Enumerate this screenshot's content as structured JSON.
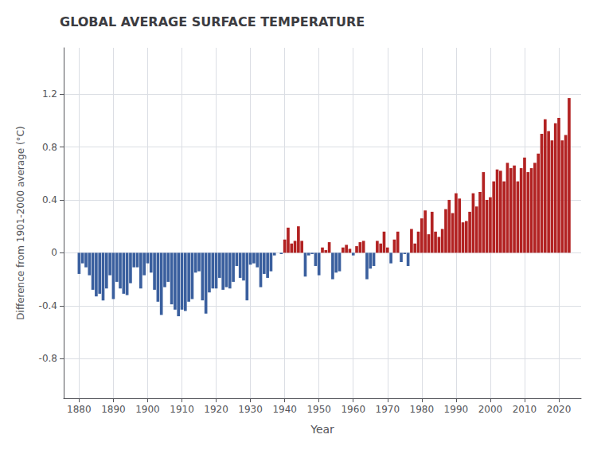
{
  "chart_data": {
    "type": "bar",
    "title": "GLOBAL AVERAGE SURFACE TEMPERATURE",
    "xlabel": "Year",
    "ylabel": "Difference from 1901-2000 average (°C)",
    "x": [
      1880,
      1881,
      1882,
      1883,
      1884,
      1885,
      1886,
      1887,
      1888,
      1889,
      1890,
      1891,
      1892,
      1893,
      1894,
      1895,
      1896,
      1897,
      1898,
      1899,
      1900,
      1901,
      1902,
      1903,
      1904,
      1905,
      1906,
      1907,
      1908,
      1909,
      1910,
      1911,
      1912,
      1913,
      1914,
      1915,
      1916,
      1917,
      1918,
      1919,
      1920,
      1921,
      1922,
      1923,
      1924,
      1925,
      1926,
      1927,
      1928,
      1929,
      1930,
      1931,
      1932,
      1933,
      1934,
      1935,
      1936,
      1937,
      1938,
      1939,
      1940,
      1941,
      1942,
      1943,
      1944,
      1945,
      1946,
      1947,
      1948,
      1949,
      1950,
      1951,
      1952,
      1953,
      1954,
      1955,
      1956,
      1957,
      1958,
      1959,
      1960,
      1961,
      1962,
      1963,
      1964,
      1965,
      1966,
      1967,
      1968,
      1969,
      1970,
      1971,
      1972,
      1973,
      1974,
      1975,
      1976,
      1977,
      1978,
      1979,
      1980,
      1981,
      1982,
      1983,
      1984,
      1985,
      1986,
      1987,
      1988,
      1989,
      1990,
      1991,
      1992,
      1993,
      1994,
      1995,
      1996,
      1997,
      1998,
      1999,
      2000,
      2001,
      2002,
      2003,
      2004,
      2005,
      2006,
      2007,
      2008,
      2009,
      2010,
      2011,
      2012,
      2013,
      2014,
      2015,
      2016,
      2017,
      2018,
      2019,
      2020,
      2021,
      2022,
      2023
    ],
    "values": [
      -0.16,
      -0.08,
      -0.11,
      -0.17,
      -0.28,
      -0.33,
      -0.31,
      -0.36,
      -0.27,
      -0.17,
      -0.35,
      -0.22,
      -0.27,
      -0.31,
      -0.32,
      -0.23,
      -0.11,
      -0.11,
      -0.27,
      -0.17,
      -0.08,
      -0.15,
      -0.28,
      -0.37,
      -0.47,
      -0.26,
      -0.22,
      -0.39,
      -0.43,
      -0.48,
      -0.43,
      -0.44,
      -0.37,
      -0.35,
      -0.15,
      -0.14,
      -0.36,
      -0.46,
      -0.3,
      -0.27,
      -0.27,
      -0.19,
      -0.28,
      -0.26,
      -0.27,
      -0.22,
      -0.1,
      -0.19,
      -0.21,
      -0.36,
      -0.09,
      -0.08,
      -0.11,
      -0.26,
      -0.16,
      -0.19,
      -0.14,
      -0.02,
      -0.0,
      -0.01,
      0.1,
      0.19,
      0.07,
      0.09,
      0.2,
      0.09,
      -0.18,
      -0.02,
      -0.01,
      -0.1,
      -0.17,
      0.04,
      0.02,
      0.08,
      -0.2,
      -0.15,
      -0.14,
      0.04,
      0.06,
      0.03,
      -0.02,
      0.05,
      0.08,
      0.09,
      -0.2,
      -0.12,
      -0.1,
      0.09,
      0.07,
      0.16,
      0.04,
      -0.08,
      0.1,
      0.16,
      -0.07,
      -0.01,
      -0.1,
      0.18,
      0.07,
      0.16,
      0.26,
      0.32,
      0.14,
      0.31,
      0.16,
      0.12,
      0.18,
      0.33,
      0.4,
      0.3,
      0.45,
      0.41,
      0.23,
      0.24,
      0.31,
      0.45,
      0.35,
      0.46,
      0.61,
      0.4,
      0.42,
      0.54,
      0.63,
      0.62,
      0.54,
      0.68,
      0.64,
      0.66,
      0.54,
      0.64,
      0.72,
      0.61,
      0.64,
      0.68,
      0.75,
      0.9,
      1.01,
      0.92,
      0.85,
      0.98,
      1.02,
      0.85,
      0.89,
      1.17
    ],
    "colors": [
      "#3a5f9e",
      "#3a5f9e",
      "#3a5f9e",
      "#3a5f9e",
      "#3a5f9e",
      "#3a5f9e",
      "#3a5f9e",
      "#3a5f9e",
      "#3a5f9e",
      "#3a5f9e",
      "#3a5f9e",
      "#3a5f9e",
      "#3a5f9e",
      "#3a5f9e",
      "#3a5f9e",
      "#3a5f9e",
      "#3a5f9e",
      "#3a5f9e",
      "#3a5f9e",
      "#3a5f9e",
      "#3a5f9e",
      "#3a5f9e",
      "#3a5f9e",
      "#3a5f9e",
      "#3a5f9e",
      "#3a5f9e",
      "#3a5f9e",
      "#3a5f9e",
      "#3a5f9e",
      "#3a5f9e",
      "#3a5f9e",
      "#3a5f9e",
      "#3a5f9e",
      "#3a5f9e",
      "#3a5f9e",
      "#3a5f9e",
      "#3a5f9e",
      "#3a5f9e",
      "#3a5f9e",
      "#3a5f9e",
      "#3a5f9e",
      "#3a5f9e",
      "#3a5f9e",
      "#3a5f9e",
      "#3a5f9e",
      "#3a5f9e",
      "#3a5f9e",
      "#3a5f9e",
      "#3a5f9e",
      "#3a5f9e",
      "#3a5f9e",
      "#3a5f9e",
      "#3a5f9e",
      "#3a5f9e",
      "#3a5f9e",
      "#3a5f9e",
      "#3a5f9e",
      "#3a5f9e",
      "#b22222",
      "#3a5f9e",
      "#b22222",
      "#b22222",
      "#b22222",
      "#b22222",
      "#b22222",
      "#b22222",
      "#3a5f9e",
      "#3a5f9e",
      "#3a5f9e",
      "#3a5f9e",
      "#3a5f9e",
      "#b22222",
      "#b22222",
      "#b22222",
      "#3a5f9e",
      "#3a5f9e",
      "#3a5f9e",
      "#b22222",
      "#b22222",
      "#b22222",
      "#3a5f9e",
      "#b22222",
      "#b22222",
      "#b22222",
      "#3a5f9e",
      "#3a5f9e",
      "#3a5f9e",
      "#b22222",
      "#b22222",
      "#b22222",
      "#b22222",
      "#3a5f9e",
      "#b22222",
      "#b22222",
      "#3a5f9e",
      "#3a5f9e",
      "#3a5f9e",
      "#b22222",
      "#b22222",
      "#b22222",
      "#b22222",
      "#b22222",
      "#b22222",
      "#b22222",
      "#b22222",
      "#b22222",
      "#b22222",
      "#b22222",
      "#b22222",
      "#b22222",
      "#b22222",
      "#b22222",
      "#b22222",
      "#b22222",
      "#b22222",
      "#b22222",
      "#b22222",
      "#b22222",
      "#b22222",
      "#b22222",
      "#b22222",
      "#b22222",
      "#b22222",
      "#b22222",
      "#b22222",
      "#b22222",
      "#b22222",
      "#b22222",
      "#b22222",
      "#b22222",
      "#b22222",
      "#b22222",
      "#b22222",
      "#b22222",
      "#b22222",
      "#b22222",
      "#b22222",
      "#b22222",
      "#b22222",
      "#b22222",
      "#b22222",
      "#b22222",
      "#b22222",
      "#b22222"
    ],
    "xlim": [
      1875.5,
      2026.5
    ],
    "xticks": [
      1880,
      1890,
      1900,
      1910,
      1920,
      1930,
      1940,
      1950,
      1960,
      1970,
      1980,
      1990,
      2000,
      2010,
      2020
    ],
    "ylim": [
      -1.1,
      1.55
    ],
    "yticks": [
      -0.8,
      -0.4,
      0,
      0.4,
      0.8,
      1.2
    ],
    "grid": true
  }
}
